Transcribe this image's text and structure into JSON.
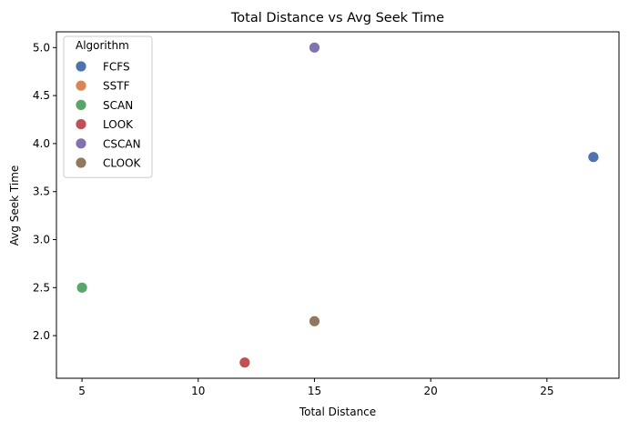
{
  "chart_data": {
    "type": "scatter",
    "title": "Total Distance vs Avg Seek Time",
    "xlabel": "Total Distance",
    "ylabel": "Avg Seek Time",
    "xlim": [
      3.9,
      28.1
    ],
    "ylim": [
      1.556,
      5.164
    ],
    "xticks": [
      5,
      10,
      15,
      20,
      25
    ],
    "yticks": [
      2.0,
      2.5,
      3.0,
      3.5,
      4.0,
      4.5,
      5.0
    ],
    "xtick_labels": [
      "5",
      "10",
      "15",
      "20",
      "25"
    ],
    "ytick_labels": [
      "2.0",
      "2.5",
      "3.0",
      "3.5",
      "4.0",
      "4.5",
      "5.0"
    ],
    "grid": false,
    "legend": {
      "title": "Algorithm",
      "placement": "top-left"
    },
    "series": [
      {
        "name": "FCFS",
        "color": "#4c72b0",
        "points": [
          {
            "x": 27,
            "y": 3.86
          }
        ]
      },
      {
        "name": "SSTF",
        "color": "#dd8452",
        "points": []
      },
      {
        "name": "SCAN",
        "color": "#55a868",
        "points": [
          {
            "x": 5,
            "y": 2.5
          }
        ]
      },
      {
        "name": "LOOK",
        "color": "#c44e52",
        "points": [
          {
            "x": 12,
            "y": 1.72
          }
        ]
      },
      {
        "name": "CSCAN",
        "color": "#8172b3",
        "points": [
          {
            "x": 15,
            "y": 5.0
          }
        ]
      },
      {
        "name": "CLOOK",
        "color": "#937860",
        "points": [
          {
            "x": 15,
            "y": 2.15
          }
        ]
      }
    ]
  }
}
